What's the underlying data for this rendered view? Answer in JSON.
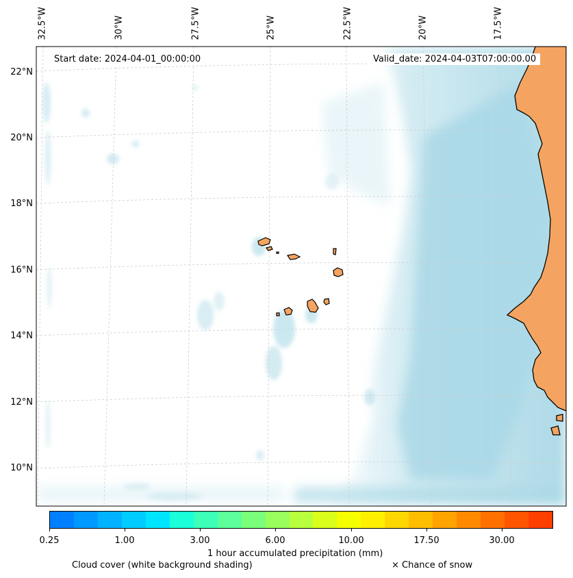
{
  "map": {
    "start_date": "Start date: 2024-04-01_00:00:00",
    "valid_date": "Valid_date: 2024-04-03T07:00:00.00",
    "lon_labels": [
      "32.5°W",
      "30°W",
      "27.5°W",
      "25°W",
      "22.5°W",
      "20°W",
      "17.5°W"
    ],
    "lat_labels": [
      "22°N",
      "20°N",
      "18°N",
      "16°N",
      "14°N",
      "12°N",
      "10°N"
    ],
    "land_color": "#f4a460",
    "cloud_color": "#a9d8e6"
  },
  "colorbar": {
    "ticks": [
      "0.25",
      "1.00",
      "3.00",
      "6.00",
      "10.00",
      "17.50",
      "30.00"
    ],
    "colors": [
      "#0080ff",
      "#0099ff",
      "#00b2ff",
      "#00ccff",
      "#00e5ff",
      "#1affd9",
      "#3dffb8",
      "#5cff99",
      "#7aff7a",
      "#99ff5c",
      "#b8ff3d",
      "#d9ff1a",
      "#f5ff00",
      "#fff000",
      "#ffd700",
      "#ffbd00",
      "#ffa300",
      "#ff8a00",
      "#ff7000",
      "#ff5500",
      "#ff3f00"
    ],
    "label": "1 hour accumulated precipitation (mm)"
  },
  "legend": {
    "cloud_cover": "Cloud cover (white background shading)",
    "snow": "× Chance of snow"
  }
}
